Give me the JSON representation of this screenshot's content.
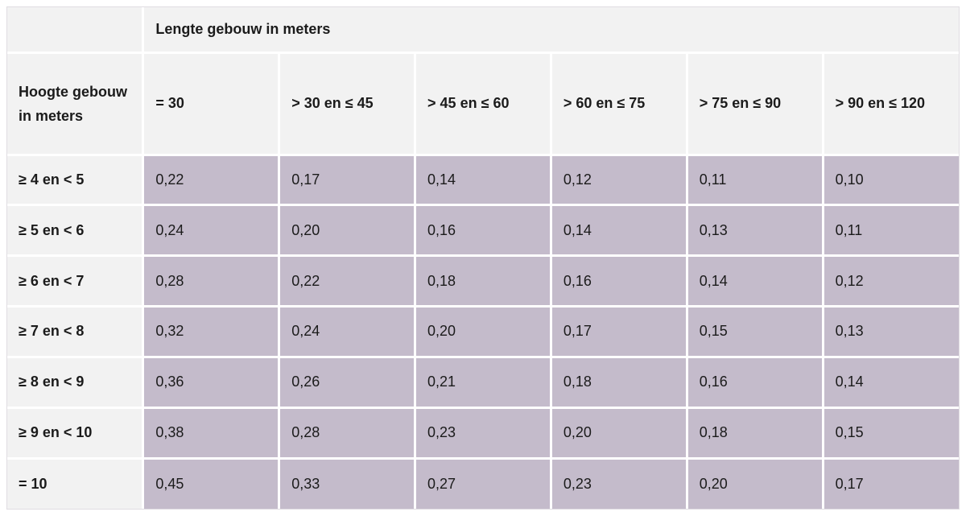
{
  "table": {
    "column_group_header": "Lengte gebouw in meters",
    "row_group_header": "Hoogte gebouw in meters",
    "column_headers": [
      "= 30",
      "> 30 en ≤ 45",
      "> 45 en ≤ 60",
      "> 60 en ≤ 75",
      "> 75 en ≤ 90",
      "> 90 en ≤ 120"
    ],
    "rows": [
      {
        "label": "≥ 4 en < 5",
        "values": [
          "0,22",
          "0,17",
          "0,14",
          "0,12",
          "0,11",
          "0,10"
        ]
      },
      {
        "label": "≥ 5 en < 6",
        "values": [
          "0,24",
          "0,20",
          "0,16",
          "0,14",
          "0,13",
          "0,11"
        ]
      },
      {
        "label": "≥ 6 en < 7",
        "values": [
          "0,28",
          "0,22",
          "0,18",
          "0,16",
          "0,14",
          "0,12"
        ]
      },
      {
        "label": "≥ 7 en < 8",
        "values": [
          "0,32",
          "0,24",
          "0,20",
          "0,17",
          "0,15",
          "0,13"
        ]
      },
      {
        "label": "≥ 8 en < 9",
        "values": [
          "0,36",
          "0,26",
          "0,21",
          "0,18",
          "0,16",
          "0,14"
        ]
      },
      {
        "label": "≥ 9 en < 10",
        "values": [
          "0,38",
          "0,28",
          "0,23",
          "0,20",
          "0,18",
          "0,15"
        ]
      },
      {
        "label": "= 10",
        "values": [
          "0,45",
          "0,33",
          "0,27",
          "0,23",
          "0,20",
          "0,17"
        ]
      }
    ],
    "colors": {
      "header_bg": "#f2f2f2",
      "data_cell_bg": "#c4bbcb",
      "grid": "#ffffff",
      "text": "#1b1b1b"
    }
  },
  "chart_data": {
    "type": "table",
    "title": "",
    "column_group_label": "Lengte gebouw in meters",
    "row_group_label": "Hoogte gebouw in meters",
    "columns": [
      "= 30",
      "> 30 en ≤ 45",
      "> 45 en ≤ 60",
      "> 60 en ≤ 75",
      "> 75 en ≤ 90",
      "> 90 en ≤ 120"
    ],
    "row_labels": [
      "≥ 4 en < 5",
      "≥ 5 en < 6",
      "≥ 6 en < 7",
      "≥ 7 en < 8",
      "≥ 8 en < 9",
      "≥ 9 en < 10",
      "= 10"
    ],
    "values": [
      [
        0.22,
        0.17,
        0.14,
        0.12,
        0.11,
        0.1
      ],
      [
        0.24,
        0.2,
        0.16,
        0.14,
        0.13,
        0.11
      ],
      [
        0.28,
        0.22,
        0.18,
        0.16,
        0.14,
        0.12
      ],
      [
        0.32,
        0.24,
        0.2,
        0.17,
        0.15,
        0.13
      ],
      [
        0.36,
        0.26,
        0.21,
        0.18,
        0.16,
        0.14
      ],
      [
        0.38,
        0.28,
        0.23,
        0.2,
        0.18,
        0.15
      ],
      [
        0.45,
        0.33,
        0.27,
        0.23,
        0.2,
        0.17
      ]
    ],
    "decimal_separator": ","
  }
}
